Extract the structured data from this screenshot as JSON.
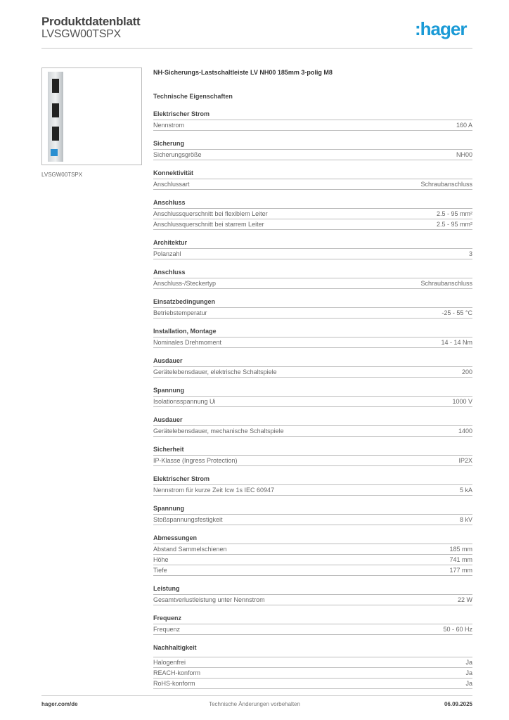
{
  "header": {
    "title": "Produktdatenblatt",
    "subtitle": "LVSGW00TSPX",
    "logo": ":hager",
    "brand_color": "#1a9ad6"
  },
  "product": {
    "image_caption": "LVSGW00TSPX",
    "name": "NH-Sicherungs-Lastschaltleiste LV NH00 185mm 3-polig  M8",
    "section_title": "Technische Eigenschaften"
  },
  "groups": [
    {
      "title": "Elektrischer Strom",
      "rows": [
        [
          "Nennstrom",
          "160 A"
        ]
      ]
    },
    {
      "title": "Sicherung",
      "rows": [
        [
          "Sicherungsgröße",
          "NH00"
        ]
      ]
    },
    {
      "title": "Konnektivität",
      "rows": [
        [
          "Anschlussart",
          "Schraubanschluss"
        ]
      ]
    },
    {
      "title": "Anschluss",
      "rows": [
        [
          "Anschlussquerschnitt bei flexiblem Leiter",
          "2.5 - 95 mm²"
        ],
        [
          "Anschlussquerschnitt bei starrem Leiter",
          "2.5 - 95 mm²"
        ]
      ]
    },
    {
      "title": "Architektur",
      "rows": [
        [
          "Polanzahl",
          "3"
        ]
      ]
    },
    {
      "title": "Anschluss",
      "rows": [
        [
          "Anschluss-/Steckertyp",
          "Schraubanschluss"
        ]
      ]
    },
    {
      "title": "Einsatzbedingungen",
      "rows": [
        [
          "Betriebstemperatur",
          "-25 - 55 °C"
        ]
      ]
    },
    {
      "title": "Installation, Montage",
      "rows": [
        [
          "Nominales Drehmoment",
          "14 - 14 Nm"
        ]
      ]
    },
    {
      "title": "Ausdauer",
      "rows": [
        [
          "Gerätelebensdauer, elektrische Schaltspiele",
          "200"
        ]
      ]
    },
    {
      "title": "Spannung",
      "rows": [
        [
          "Isolationsspannung Ui",
          "1000 V"
        ]
      ]
    },
    {
      "title": "Ausdauer",
      "rows": [
        [
          "Gerätelebensdauer, mechanische Schaltspiele",
          "1400"
        ]
      ]
    },
    {
      "title": "Sicherheit",
      "rows": [
        [
          "IP-Klasse (Ingress Protection)",
          "IP2X"
        ]
      ]
    },
    {
      "title": "Elektrischer Strom",
      "rows": [
        [
          "Nennstrom für kurze Zeit Icw 1s IEC 60947",
          "5 kA"
        ]
      ]
    },
    {
      "title": "Spannung",
      "rows": [
        [
          "Stoßspannungsfestigkeit",
          "8 kV"
        ]
      ]
    },
    {
      "title": "Abmessungen",
      "rows": [
        [
          "Abstand Sammelschienen",
          "185 mm"
        ],
        [
          "Höhe",
          "741 mm"
        ],
        [
          "Tiefe",
          "177 mm"
        ]
      ]
    },
    {
      "title": "Leistung",
      "rows": [
        [
          "Gesamtverlustleistung unter Nennstrom",
          "22 W"
        ]
      ]
    },
    {
      "title": "Frequenz",
      "rows": [
        [
          "Frequenz",
          "50 - 60 Hz"
        ]
      ]
    },
    {
      "title": "Nachhaltigkeit",
      "tall": true,
      "rows": [
        [
          "Halogenfrei",
          "Ja"
        ],
        [
          "REACH-konform",
          "Ja"
        ],
        [
          "RoHS-konform",
          "Ja"
        ]
      ]
    }
  ],
  "footer": {
    "website": "hager.com/de",
    "notice": "Technische Änderungen vorbehalten",
    "date": "06.09.2025"
  }
}
